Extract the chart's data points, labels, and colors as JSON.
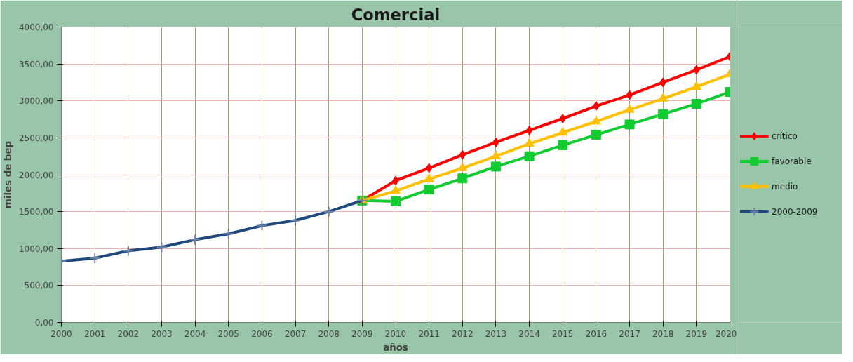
{
  "chart_data": {
    "type": "line",
    "title": "Comercial",
    "xlabel": "años",
    "ylabel": "miles de bep",
    "xlim": [
      2000,
      2020
    ],
    "xticks": [
      2000,
      2001,
      2002,
      2003,
      2004,
      2005,
      2006,
      2007,
      2008,
      2009,
      2010,
      2011,
      2012,
      2013,
      2014,
      2015,
      2016,
      2017,
      2018,
      2019,
      2020
    ],
    "ylim": [
      0,
      4000
    ],
    "yticks": [
      {
        "value": 0,
        "label": "0,00"
      },
      {
        "value": 500,
        "label": "500,00"
      },
      {
        "value": 1000,
        "label": "1000,00"
      },
      {
        "value": 1500,
        "label": "1500,00"
      },
      {
        "value": 2000,
        "label": "2000,00"
      },
      {
        "value": 2500,
        "label": "2500,00"
      },
      {
        "value": 3000,
        "label": "3000,00"
      },
      {
        "value": 3500,
        "label": "3500,00"
      },
      {
        "value": 4000,
        "label": "4000,00"
      }
    ],
    "grid": true,
    "legend": "right",
    "line_style": "solid",
    "series": [
      {
        "name": "crítico",
        "color": "#ff0000",
        "marker": "diamond",
        "x": [
          2009,
          2010,
          2011,
          2012,
          2013,
          2014,
          2015,
          2016,
          2017,
          2018,
          2019,
          2020
        ],
        "values": [
          1650,
          1920,
          2090,
          2270,
          2440,
          2600,
          2760,
          2930,
          3080,
          3250,
          3420,
          3600
        ]
      },
      {
        "name": "favorable",
        "color": "#10cc30",
        "marker": "square",
        "x": [
          2009,
          2010,
          2011,
          2012,
          2013,
          2014,
          2015,
          2016,
          2017,
          2018,
          2019,
          2020
        ],
        "values": [
          1650,
          1640,
          1800,
          1950,
          2110,
          2250,
          2400,
          2540,
          2680,
          2820,
          2960,
          3120
        ]
      },
      {
        "name": "medio",
        "color": "#ffc000",
        "marker": "triangle",
        "x": [
          2009,
          2010,
          2011,
          2012,
          2013,
          2014,
          2015,
          2016,
          2017,
          2018,
          2019,
          2020
        ],
        "values": [
          1650,
          1780,
          1940,
          2090,
          2250,
          2420,
          2570,
          2720,
          2880,
          3030,
          3190,
          3360
        ]
      },
      {
        "name": "2000-2009",
        "color": "#1f497d",
        "marker": "cross",
        "x": [
          2000,
          2001,
          2002,
          2003,
          2004,
          2005,
          2006,
          2007,
          2008,
          2009
        ],
        "values": [
          830,
          870,
          970,
          1020,
          1120,
          1200,
          1310,
          1380,
          1500,
          1650
        ]
      }
    ]
  }
}
